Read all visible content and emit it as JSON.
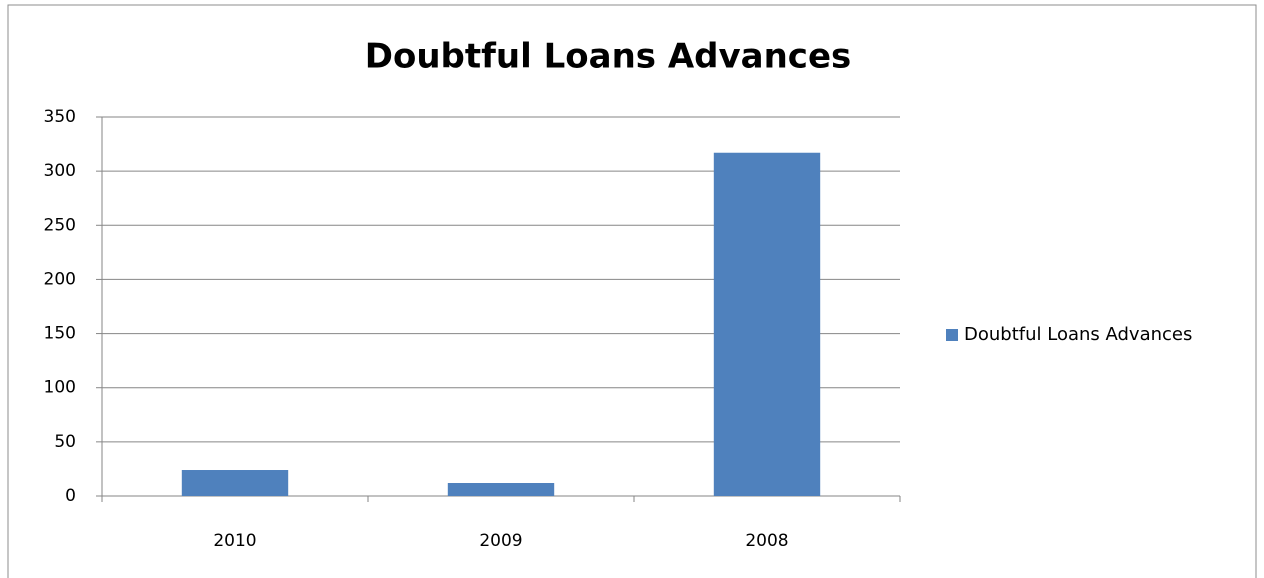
{
  "chart_data": {
    "type": "bar",
    "title": "Doubtful Loans Advances",
    "categories": [
      "2010",
      "2009",
      "2008"
    ],
    "series": [
      {
        "name": "Doubtful Loans Advances",
        "color": "#4f81bd",
        "values": [
          24,
          12,
          317
        ]
      }
    ],
    "ylim": [
      0,
      350
    ],
    "yticks": [
      0,
      50,
      100,
      150,
      200,
      250,
      300,
      350
    ],
    "grid": true,
    "legend": "right"
  }
}
